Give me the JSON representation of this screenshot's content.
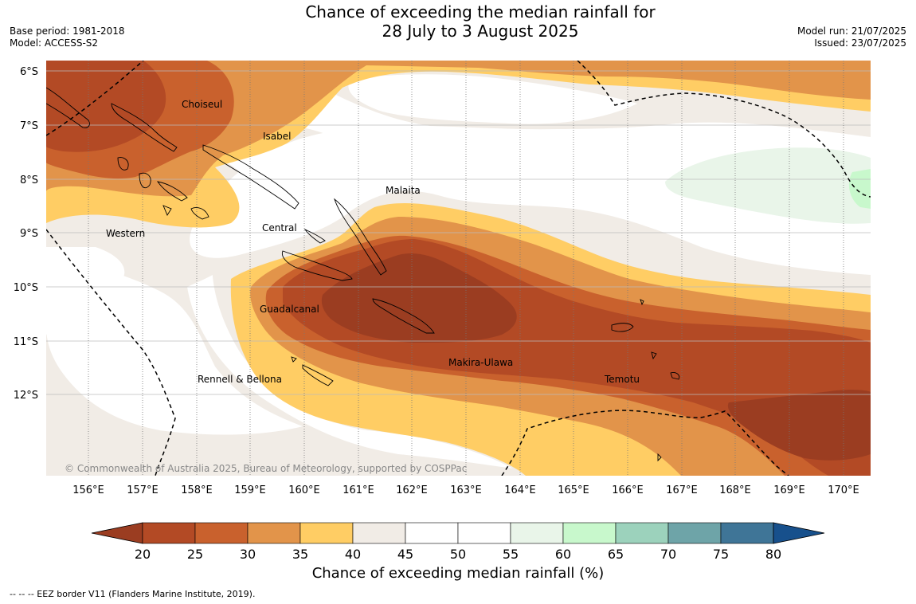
{
  "header": {
    "title_line1": "Chance of exceeding the median rainfall for",
    "title_line2": "28 July to 3 August 2025",
    "base_period": "Base period: 1981-2018",
    "model": "Model: ACCESS-S2",
    "model_run": "Model run: 21/07/2025",
    "issued": "Issued: 23/07/2025"
  },
  "map": {
    "lat_labels": [
      "6°S",
      "7°S",
      "8°S",
      "9°S",
      "10°S",
      "11°S",
      "12°S"
    ],
    "lon_labels": [
      "156°E",
      "157°E",
      "158°E",
      "159°E",
      "160°E",
      "161°E",
      "162°E",
      "163°E",
      "164°E",
      "165°E",
      "166°E",
      "167°E",
      "168°E",
      "169°E",
      "170°E"
    ],
    "regions": [
      "Choiseul",
      "Isabel",
      "Malaita",
      "Central",
      "Western",
      "Guadalcanal",
      "Makira-Ulawa",
      "Rennell & Bellona",
      "Temotu"
    ],
    "copyright": "© Commonwealth of Australia 2025, Bureau of Meteorology, supported by COSPPac"
  },
  "colorbar": {
    "ticks": [
      "20",
      "25",
      "30",
      "35",
      "40",
      "45",
      "50",
      "55",
      "60",
      "65",
      "70",
      "75",
      "80"
    ],
    "label": "Chance of exceeding median rainfall (%)",
    "colors": [
      "#9b3d21",
      "#b34a25",
      "#c9612d",
      "#e2944a",
      "#ffcd64",
      "#f1ece6",
      "#ffffff",
      "#ffffff",
      "#e9f5e9",
      "#c8f8cc",
      "#9cd2bc",
      "#6ea4a8",
      "#3f7597",
      "#17508c"
    ]
  },
  "footnote": "--  --  -- EEZ border V11 (Flanders Marine Institute, 2019)."
}
